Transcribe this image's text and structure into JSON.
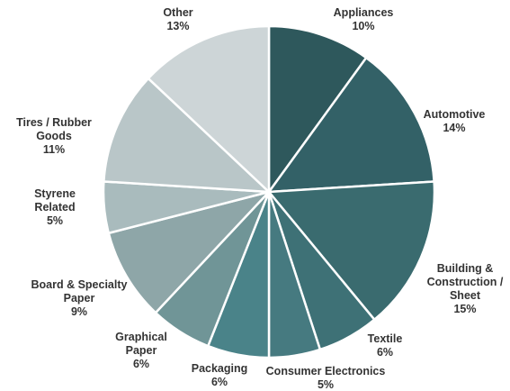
{
  "chart_data": {
    "type": "pie",
    "start": "12 o'clock",
    "direction": "clockwise",
    "title": "",
    "slices": [
      {
        "label": [
          "Appliances"
        ],
        "value_label": "10%",
        "value": 10,
        "color": "#2e585c"
      },
      {
        "label": [
          "Automotive"
        ],
        "value_label": "14%",
        "value": 14,
        "color": "#336167"
      },
      {
        "label": [
          "Building &",
          "Construction /",
          "Sheet"
        ],
        "value_label": "15%",
        "value": 15,
        "color": "#3a6b6f"
      },
      {
        "label": [
          "Textile"
        ],
        "value_label": "6%",
        "value": 6,
        "color": "#3e7176"
      },
      {
        "label": [
          "Consumer Electronics"
        ],
        "value_label": "5%",
        "value": 5,
        "color": "#467a80"
      },
      {
        "label": [
          "Packaging"
        ],
        "value_label": "6%",
        "value": 6,
        "color": "#4a8389"
      },
      {
        "label": [
          "Graphical",
          "Paper"
        ],
        "value_label": "6%",
        "value": 6,
        "color": "#709597"
      },
      {
        "label": [
          "Board & Specialty",
          "Paper"
        ],
        "value_label": "9%",
        "value": 9,
        "color": "#8ea6a8"
      },
      {
        "label": [
          "Styrene",
          "Related"
        ],
        "value_label": "5%",
        "value": 5,
        "color": "#a9bbbd"
      },
      {
        "label": [
          "Tires / Rubber",
          "Goods"
        ],
        "value_label": "11%",
        "value": 11,
        "color": "#b9c6c8"
      },
      {
        "label": [
          "Other"
        ],
        "value_label": "13%",
        "value": 13,
        "color": "#cdd5d7"
      }
    ]
  }
}
